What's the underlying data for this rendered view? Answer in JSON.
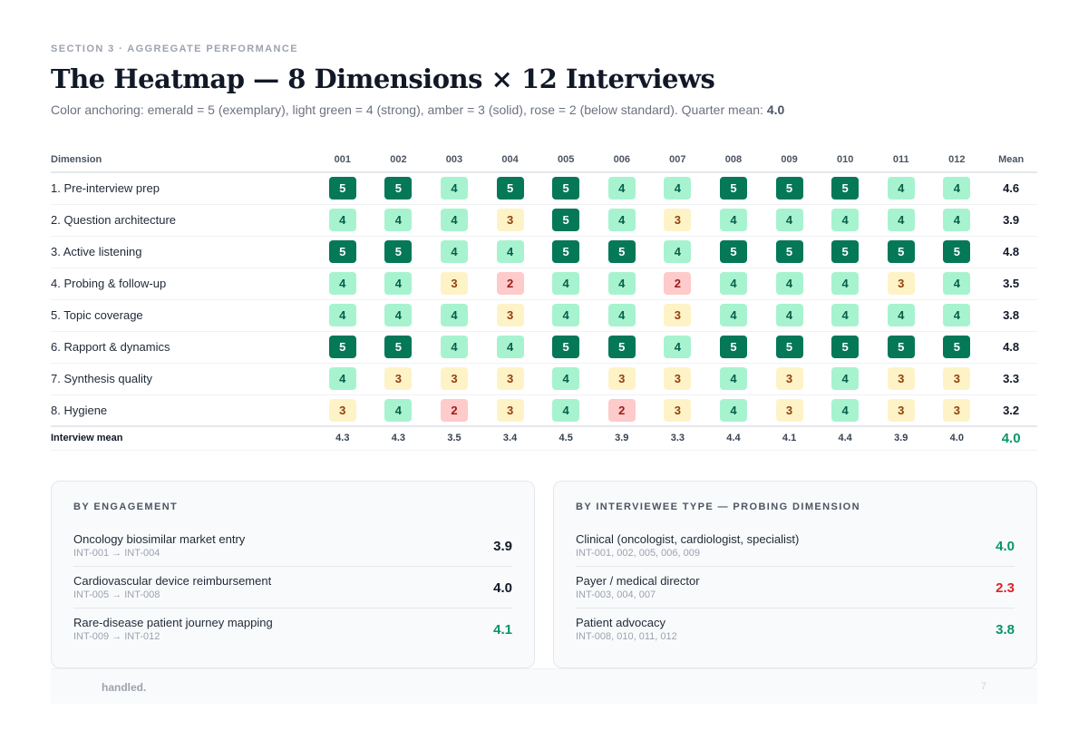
{
  "eyebrow": "SECTION 3 · AGGREGATE PERFORMANCE",
  "title": "The Heatmap — 8 Dimensions × 12 Interviews",
  "subtitle": "Color anchoring: emerald = 5 (exemplary), light green = 4 (strong), amber = 3 (solid), rose = 2 (below standard). Quarter mean: ",
  "quarter_mean": "4.0",
  "colors": {
    "score_5": "#047857",
    "score_4": "#a7f3d0",
    "score_3": "#fef3c7",
    "score_2": "#fecaca",
    "accent_green": "#059669",
    "accent_red": "#dc2626"
  },
  "heatmap": {
    "dimension_header": "Dimension",
    "mean_header": "Mean",
    "interviews": [
      "001",
      "002",
      "003",
      "004",
      "005",
      "006",
      "007",
      "008",
      "009",
      "010",
      "011",
      "012"
    ],
    "rows": [
      {
        "name": "1. Pre-interview prep",
        "scores": [
          5,
          5,
          4,
          5,
          5,
          4,
          4,
          5,
          5,
          5,
          4,
          4
        ],
        "mean": "4.6"
      },
      {
        "name": "2. Question architecture",
        "scores": [
          4,
          4,
          4,
          3,
          5,
          4,
          3,
          4,
          4,
          4,
          4,
          4
        ],
        "mean": "3.9"
      },
      {
        "name": "3. Active listening",
        "scores": [
          5,
          5,
          4,
          4,
          5,
          5,
          4,
          5,
          5,
          5,
          5,
          5
        ],
        "mean": "4.8"
      },
      {
        "name": "4. Probing & follow-up",
        "scores": [
          4,
          4,
          3,
          2,
          4,
          4,
          2,
          4,
          4,
          4,
          3,
          4
        ],
        "mean": "3.5"
      },
      {
        "name": "5. Topic coverage",
        "scores": [
          4,
          4,
          4,
          3,
          4,
          4,
          3,
          4,
          4,
          4,
          4,
          4
        ],
        "mean": "3.8"
      },
      {
        "name": "6. Rapport & dynamics",
        "scores": [
          5,
          5,
          4,
          4,
          5,
          5,
          4,
          5,
          5,
          5,
          5,
          5
        ],
        "mean": "4.8"
      },
      {
        "name": "7. Synthesis quality",
        "scores": [
          4,
          3,
          3,
          3,
          4,
          3,
          3,
          4,
          3,
          4,
          3,
          3
        ],
        "mean": "3.3"
      },
      {
        "name": "8. Hygiene",
        "scores": [
          3,
          4,
          2,
          3,
          4,
          2,
          3,
          4,
          3,
          4,
          3,
          3
        ],
        "mean": "3.2"
      }
    ],
    "footer_label": "Interview mean",
    "interview_means": [
      "4.3",
      "4.3",
      "3.5",
      "3.4",
      "4.5",
      "3.9",
      "3.3",
      "4.4",
      "4.1",
      "4.4",
      "3.9",
      "4.0"
    ],
    "grand_mean": "4.0"
  },
  "by_engagement": {
    "title": "BY ENGAGEMENT",
    "rows": [
      {
        "label": "Oncology biosimilar market entry",
        "sub": "INT-001 → INT-004",
        "value": "3.9",
        "color": "#111827"
      },
      {
        "label": "Cardiovascular device reimbursement",
        "sub": "INT-005 → INT-008",
        "value": "4.0",
        "color": "#111827"
      },
      {
        "label": "Rare-disease patient journey mapping",
        "sub": "INT-009 → INT-012",
        "value": "4.1",
        "color": "#059669"
      }
    ]
  },
  "by_type": {
    "title": "BY INTERVIEWEE TYPE — PROBING DIMENSION",
    "rows": [
      {
        "label": "Clinical (oncologist, cardiologist, specialist)",
        "sub": "INT-001, 002, 005, 006, 009",
        "value": "4.0",
        "color": "#059669"
      },
      {
        "label": "Payer / medical director",
        "sub": "INT-003, 004, 007",
        "value": "2.3",
        "color": "#dc2626"
      },
      {
        "label": "Patient advocacy",
        "sub": "INT-008, 010, 011, 012",
        "value": "3.8",
        "color": "#059669"
      }
    ]
  },
  "footer": {
    "brand": "handled.",
    "page_number": "7"
  }
}
